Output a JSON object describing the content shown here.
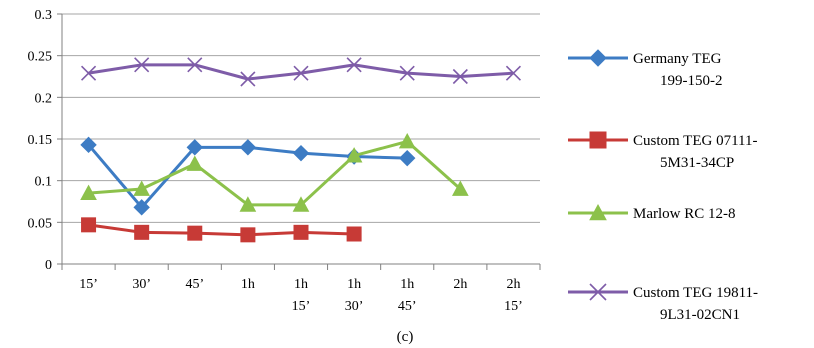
{
  "chart_data": {
    "type": "line",
    "categories": [
      [
        "15’"
      ],
      [
        "30’"
      ],
      [
        "45’"
      ],
      [
        "1h"
      ],
      [
        "1h",
        "15’"
      ],
      [
        "1h",
        "30’"
      ],
      [
        "1h",
        "45’"
      ],
      [
        "2h"
      ],
      [
        "2h",
        "15’"
      ]
    ],
    "yticks": [
      "0",
      "0.05",
      "0.1",
      "0.15",
      "0.2",
      "0.25",
      "0.3"
    ],
    "ylim": [
      0,
      0.3
    ],
    "grid": "horizontal",
    "legend_position": "right",
    "caption": "(c)",
    "series": [
      {
        "name": "Germany TEG 199-150-2",
        "label_lines": [
          "Germany TEG",
          "199-150-2"
        ],
        "color": "#3d7cc4",
        "marker": "diamond",
        "values": [
          0.143,
          0.068,
          0.14,
          0.14,
          0.133,
          0.129,
          0.127,
          null,
          null
        ]
      },
      {
        "name": "Custom TEG 07111-5M31-34CP",
        "label_lines": [
          "Custom TEG 07111-",
          "5M31-34CP"
        ],
        "color": "#c73a36",
        "marker": "square",
        "values": [
          0.047,
          0.038,
          0.037,
          0.035,
          0.038,
          0.036,
          null,
          null,
          null
        ]
      },
      {
        "name": "Marlow RC 12-8",
        "label_lines": [
          "Marlow RC 12-8"
        ],
        "color": "#8cc14b",
        "marker": "triangle",
        "values": [
          0.085,
          0.09,
          0.12,
          0.071,
          0.071,
          0.13,
          0.147,
          0.09,
          null
        ]
      },
      {
        "name": "Custom TEG 19811-9L31-02CN1",
        "label_lines": [
          "Custom TEG 19811-",
          "9L31-02CN1"
        ],
        "color": "#7e5ca8",
        "marker": "x",
        "values": [
          0.229,
          0.239,
          0.239,
          0.222,
          0.229,
          0.239,
          0.229,
          0.225,
          0.229
        ]
      }
    ]
  }
}
